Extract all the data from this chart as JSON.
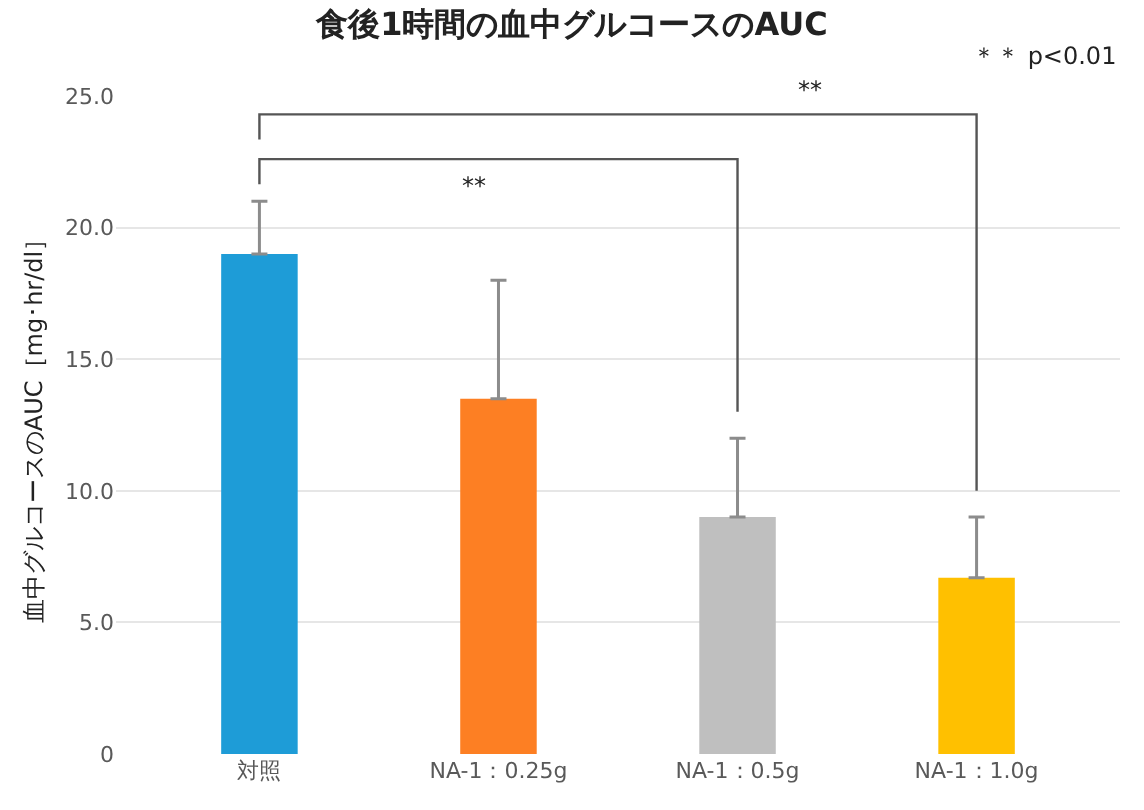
{
  "chart_data": {
    "type": "bar",
    "title": "食後1時間の血中グルコースのAUC",
    "ylabel": "血中グルコースのAUC［mg･hr/dl］",
    "categories": [
      "対照",
      "NA-1：0.25g",
      "NA-1：0.5g",
      "NA-1：1.0g"
    ],
    "values": [
      19.0,
      13.5,
      9.0,
      6.7
    ],
    "colors": [
      "#1e9cd7",
      "#fd7f23",
      "#bfbfbf",
      "#ffc000"
    ],
    "errors": [
      [
        19.0,
        21.0
      ],
      [
        13.5,
        18.0
      ],
      [
        9.0,
        12.0
      ],
      [
        6.7,
        9.0
      ]
    ],
    "ylim": [
      0,
      25
    ],
    "yticks": [
      {
        "value": 0,
        "label": "0"
      },
      {
        "value": 5,
        "label": "5.0"
      },
      {
        "value": 10,
        "label": "10.0"
      },
      {
        "value": 15,
        "label": "15.0"
      },
      {
        "value": 20,
        "label": "20.0"
      },
      {
        "value": 25,
        "label": "25.0"
      }
    ],
    "grid": "y",
    "annotations": [
      "**",
      "**",
      "＊＊ p<0.01"
    ]
  }
}
